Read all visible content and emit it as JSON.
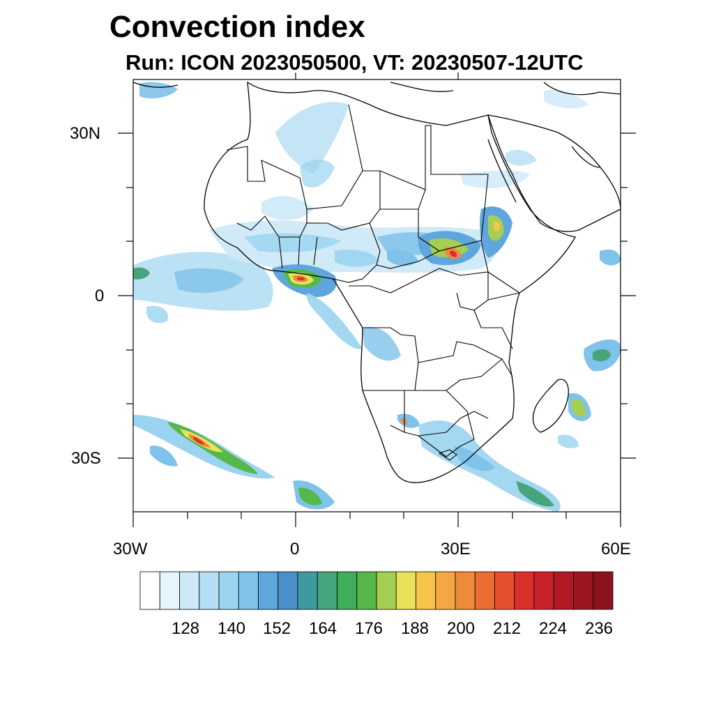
{
  "title": "Convection index",
  "subtitle": "Run: ICON 2023050500,  VT: 20230507-12UTC",
  "axes": {
    "lat_labels": [
      "30N",
      "0",
      "30S"
    ],
    "lon_labels": [
      "30W",
      "0",
      "30E",
      "60E"
    ],
    "lat_range": [
      -40,
      40
    ],
    "lon_range": [
      -30,
      60
    ]
  },
  "colorbar": {
    "labels": [
      "128",
      "140",
      "152",
      "164",
      "176",
      "188",
      "200",
      "212",
      "224",
      "236"
    ],
    "colors": [
      "#ffffff",
      "#e6f4fb",
      "#cde9f7",
      "#b4def3",
      "#9ad4f0",
      "#7fc2ea",
      "#5fa6dc",
      "#4b8fc8",
      "#3f9aa0",
      "#46a57a",
      "#3fae5a",
      "#55b848",
      "#a5cf53",
      "#e8e25a",
      "#f6c44a",
      "#f3a844",
      "#ef8a3b",
      "#eb6d34",
      "#e5512f",
      "#d9302c",
      "#c9212a",
      "#b11a25",
      "#9b1620",
      "#8a141c"
    ]
  },
  "chart_data": {
    "type": "heatmap",
    "title": "Convection index",
    "subtitle": "Run: ICON 2023050500,  VT: 20230507-12UTC",
    "x_ticks": [
      "30W",
      "0",
      "30E",
      "60E"
    ],
    "y_ticks": [
      "30N",
      "0",
      "30S"
    ],
    "xlim": [
      -30,
      60
    ],
    "ylim": [
      -40,
      40
    ],
    "colorbar_ticks": [
      128,
      140,
      152,
      164,
      176,
      188,
      200,
      212,
      224,
      236
    ],
    "regions_of_high_values": [
      "Gulf of Guinea",
      "Ethiopian Highlands",
      "South Sudan",
      "southwest of South Africa (South Atlantic)"
    ]
  }
}
